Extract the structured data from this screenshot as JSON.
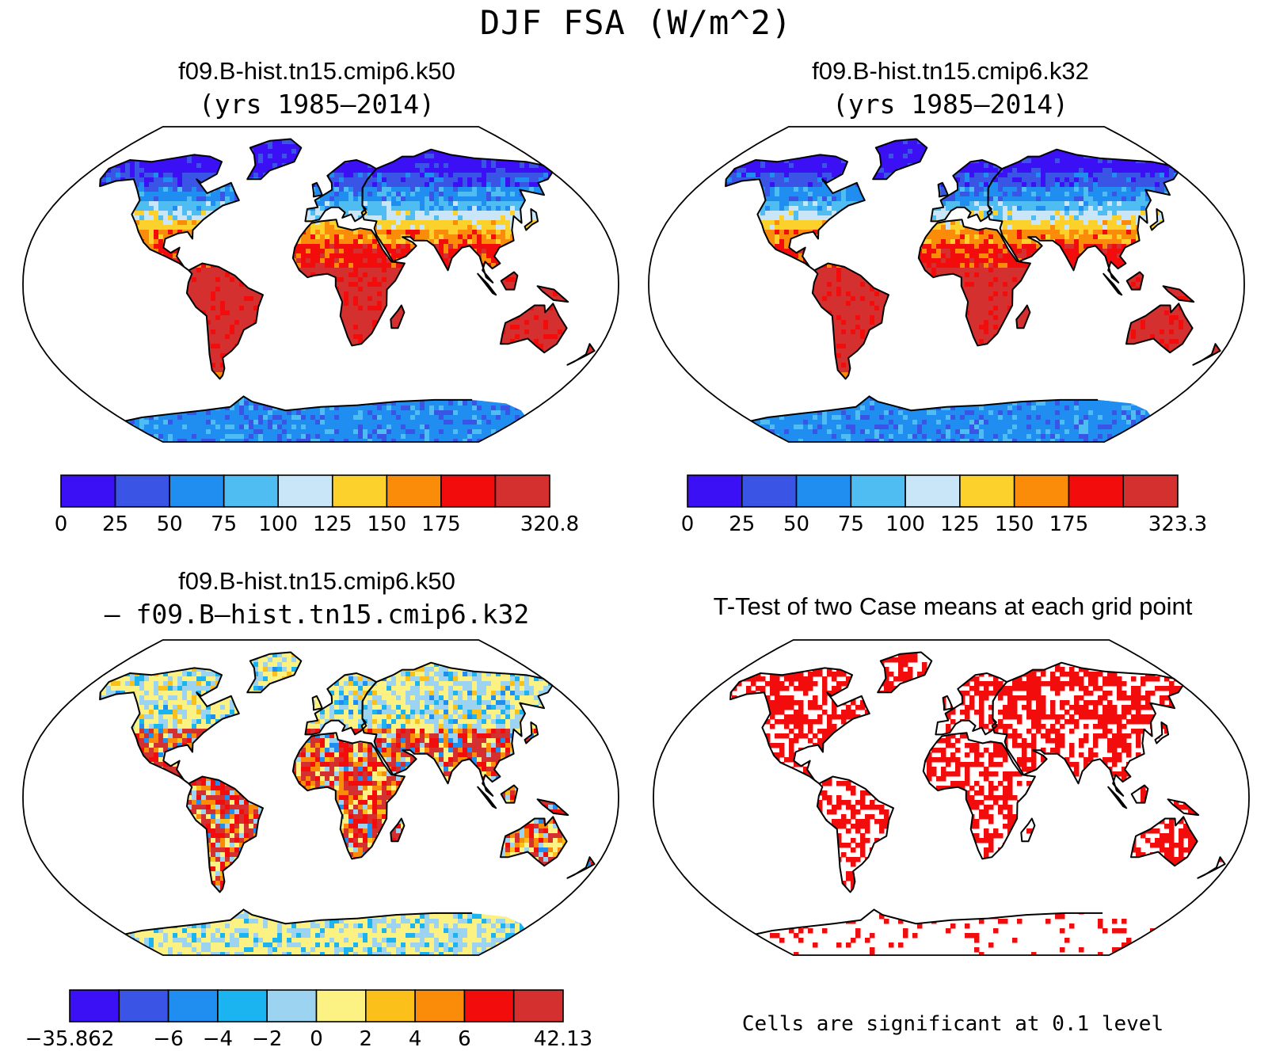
{
  "title": "DJF FSA (W/m^2)",
  "panels": [
    {
      "id": "k50",
      "title": "f09.B-hist.tn15.cmip6.k50",
      "subtitle": "(yrs 1985—2014)",
      "scheme": "abs",
      "colorbar": {
        "colors": [
          "#3b10f5",
          "#3a55e6",
          "#1f8ef0",
          "#4fbcf2",
          "#c8e6f8",
          "#fdd12b",
          "#fb8c0a",
          "#f20c0c",
          "#d43030"
        ],
        "labels": [
          "0",
          "25",
          "50",
          "75",
          "100",
          "125",
          "150",
          "175",
          "320.8"
        ]
      }
    },
    {
      "id": "k32",
      "title": "f09.B-hist.tn15.cmip6.k32",
      "subtitle": "(yrs 1985—2014)",
      "scheme": "abs",
      "colorbar": {
        "colors": [
          "#3b10f5",
          "#3a55e6",
          "#1f8ef0",
          "#4fbcf2",
          "#c8e6f8",
          "#fdd12b",
          "#fb8c0a",
          "#f20c0c",
          "#d43030"
        ],
        "labels": [
          "0",
          "25",
          "50",
          "75",
          "100",
          "125",
          "150",
          "175",
          "323.3"
        ]
      }
    },
    {
      "id": "diff",
      "title": "f09.B-hist.tn15.cmip6.k50",
      "subtitle": "— f09.B—hist.tn15.cmip6.k32",
      "scheme": "diff",
      "colorbar": {
        "colors": [
          "#3b10f5",
          "#3a55e6",
          "#1f8ef0",
          "#1cb4f0",
          "#9cd3f0",
          "#fbf283",
          "#fbc01a",
          "#fb8c0a",
          "#f20c0c",
          "#d43030"
        ],
        "labels": [
          "−35.862",
          "−6",
          "−4",
          "−2",
          "0",
          "2",
          "4",
          "6",
          "42.13"
        ]
      }
    },
    {
      "id": "ttest",
      "title": "T-Test of two Case means at each grid point",
      "scheme": "sig",
      "note": "Cells are significant at 0.1 level"
    }
  ]
}
